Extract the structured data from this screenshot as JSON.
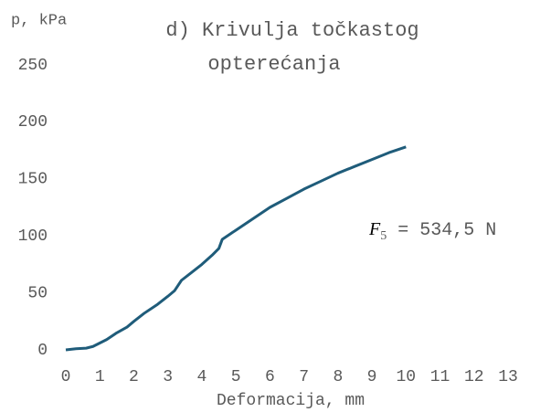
{
  "chart_data": {
    "type": "line",
    "title": [
      "d) Krivulja točkastog",
      "opterećanja"
    ],
    "y_label": "p, kPa",
    "x_label": "Deformacija, mm",
    "annotation": {
      "symbol": "F",
      "subscript": "5",
      "text": "= 534,5 N"
    },
    "x": [
      0,
      0.3,
      0.6,
      0.8,
      1,
      1.2,
      1.5,
      1.8,
      2,
      2.3,
      2.7,
      3,
      3.2,
      3.4,
      3.7,
      4,
      4.3,
      4.5,
      4.6,
      5,
      5.5,
      6,
      6.5,
      7,
      7.5,
      8,
      8.5,
      9,
      9.5,
      10
    ],
    "series": [
      {
        "name": "p",
        "color": "#1f5c7a",
        "values": [
          0,
          1,
          1.5,
          3,
          6,
          9,
          15,
          20,
          25,
          32,
          40,
          47,
          52,
          61,
          68,
          75,
          83,
          89,
          97,
          105,
          115,
          125,
          133,
          141,
          148,
          155,
          161,
          167,
          173,
          178
        ]
      }
    ],
    "xlim": [
      0,
      13
    ],
    "xticks": [
      0,
      1,
      2,
      3,
      4,
      5,
      6,
      7,
      8,
      9,
      10,
      11,
      12,
      13
    ],
    "ylim": [
      0,
      250
    ],
    "yticks": [
      0,
      50,
      100,
      150,
      200,
      250
    ],
    "grid": false
  }
}
